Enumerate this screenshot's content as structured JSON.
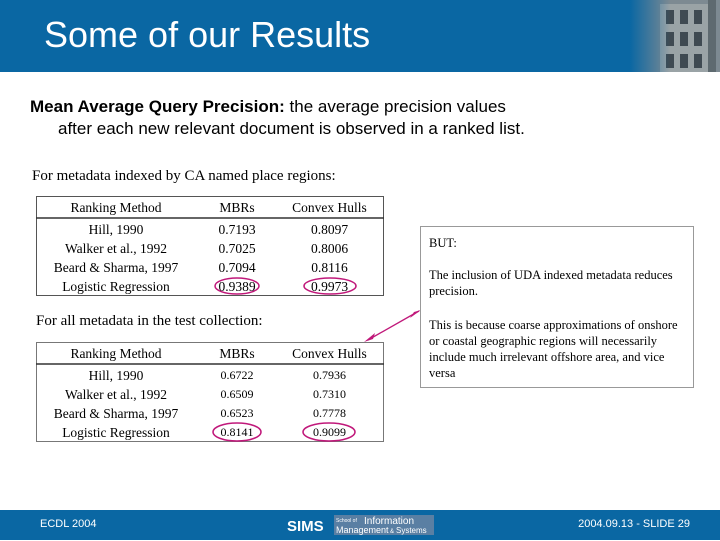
{
  "slide": {
    "title": "Some of our Results"
  },
  "intro": {
    "term": "Mean Average Query Precision:",
    "text_line1": " the average precision values",
    "text_line2": "after each new relevant document is observed in a ranked list."
  },
  "table1": {
    "caption": "For metadata indexed by CA named place regions:",
    "headers": [
      "Ranking Method",
      "MBRs",
      "Convex Hulls"
    ],
    "rows": [
      [
        "Hill, 1990",
        "0.7193",
        "0.8097"
      ],
      [
        "Walker et al., 1992",
        "0.7025",
        "0.8006"
      ],
      [
        "Beard & Sharma, 1997",
        "0.7094",
        "0.8116"
      ],
      [
        "Logistic Regression",
        "0.9389",
        "0.9973"
      ]
    ]
  },
  "table2": {
    "caption": "For all metadata in the test collection:",
    "headers": [
      "Ranking Method",
      "MBRs",
      "Convex Hulls"
    ],
    "rows": [
      [
        "Hill, 1990",
        "0.6722",
        "0.7936"
      ],
      [
        "Walker et al., 1992",
        "0.6509",
        "0.7310"
      ],
      [
        "Beard & Sharma, 1997",
        "0.6523",
        "0.7778"
      ],
      [
        "Logistic Regression",
        "0.8141",
        "0.9099"
      ]
    ]
  },
  "note": {
    "heading": "BUT:",
    "para1": "The inclusion of UDA indexed metadata reduces precision.",
    "para2": "This is because coarse approximations of onshore or coastal geographic regions will necessarily include much irrelevant offshore area, and vice versa"
  },
  "footer": {
    "left": "ECDL 2004",
    "right": "2004.09.13 - SLIDE 29",
    "logo_sims": "SIMS",
    "logo_school_of": "School of",
    "logo_information": "Information",
    "logo_management": "Management",
    "logo_and": "&",
    "logo_systems": "Systems"
  },
  "colors": {
    "brand_blue": "#0a67a3",
    "highlight_circle": "#c0187a",
    "arrow": "#c0187a"
  }
}
